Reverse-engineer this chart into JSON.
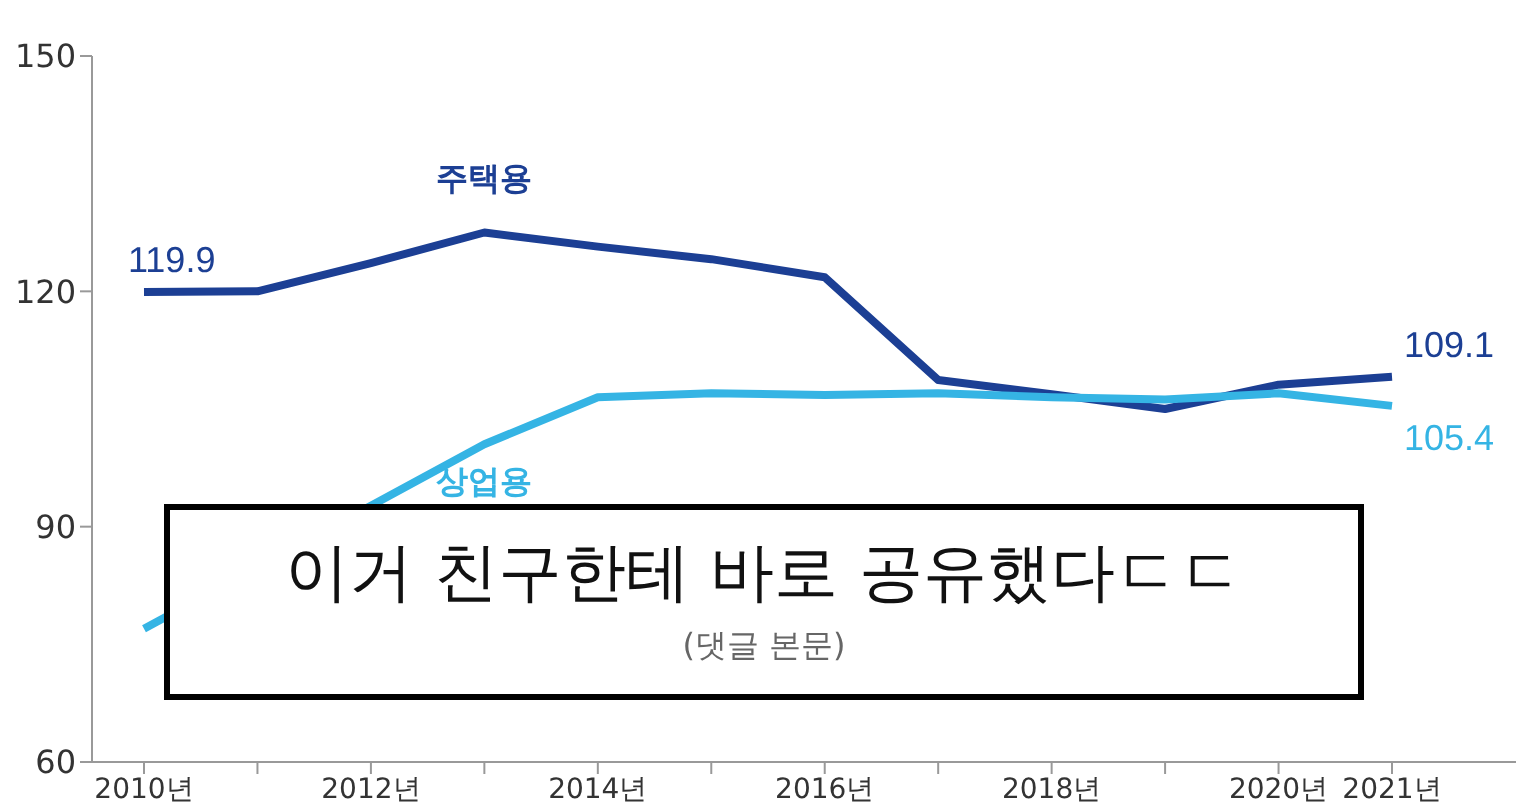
{
  "chart_data": {
    "type": "line",
    "categories": [
      "2010년",
      null,
      "2012년",
      null,
      "2014년",
      null,
      "2016년",
      null,
      "2018년",
      null,
      "2020년",
      "2021년"
    ],
    "series": [
      {
        "name": "주택용",
        "color": "#1c3f94",
        "values": [
          119.9,
          120,
          123.6,
          127.5,
          125.7,
          124.1,
          121.8,
          108.7,
          106.9,
          105,
          108.1,
          109.1
        ],
        "value_labels": [
          "119.9",
          null,
          null,
          null,
          null,
          null,
          null,
          null,
          null,
          null,
          null,
          "109.1"
        ]
      },
      {
        "name": "상업용",
        "color": "#35b4e4",
        "values": [
          77,
          null,
          null,
          100.5,
          106.5,
          107,
          106.8,
          107,
          106.5,
          106.2,
          107,
          105.4
        ],
        "value_labels": [
          null,
          null,
          null,
          null,
          null,
          null,
          null,
          null,
          null,
          null,
          null,
          "105.4"
        ]
      }
    ],
    "ylim": [
      60,
      150
    ],
    "yticks": [
      60,
      90,
      120,
      150
    ],
    "marker": "none",
    "line_style": "solid",
    "annotations": [
      "이거 친구한테 바로 공유했다ㄷㄷ",
      "(댓글 본문)"
    ]
  }
}
